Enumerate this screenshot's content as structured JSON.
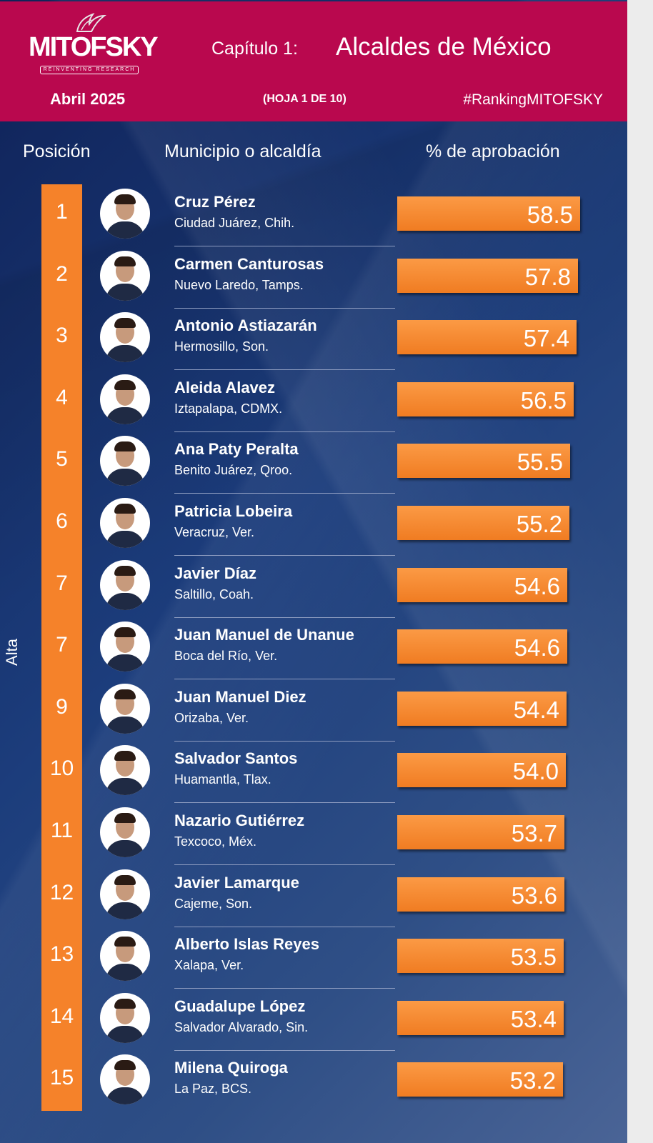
{
  "header": {
    "logo_text": "MITOFSKY",
    "logo_tagline": "REINVENTING RESEARCH",
    "chapter": "Capítulo 1:",
    "title": "Alcaldes de México",
    "date": "Abril 2025",
    "sheet": "(HOJA 1 DE 10)",
    "hashtag": "#RankingMITOFSKY",
    "brand_color": "#b9084e"
  },
  "columns": {
    "position": "Posición",
    "municipality": "Municipio o alcaldía",
    "approval": "% de aprobación"
  },
  "side_label": "Alta",
  "bar_color": "#f5822a",
  "chart_data": {
    "type": "bar",
    "orientation": "horizontal",
    "rows": [
      {
        "pos": "1",
        "name": "Cruz Pérez",
        "city": "Ciudad Juárez, Chih.",
        "value": "58.5"
      },
      {
        "pos": "2",
        "name": "Carmen Canturosas",
        "city": "Nuevo Laredo, Tamps.",
        "value": "57.8"
      },
      {
        "pos": "3",
        "name": "Antonio Astiazarán",
        "city": "Hermosillo, Son.",
        "value": "57.4"
      },
      {
        "pos": "4",
        "name": "Aleida Alavez",
        "city": "Iztapalapa, CDMX.",
        "value": "56.5"
      },
      {
        "pos": "5",
        "name": "Ana Paty Peralta",
        "city": "Benito Juárez, Qroo.",
        "value": "55.5"
      },
      {
        "pos": "6",
        "name": "Patricia Lobeira",
        "city": "Veracruz, Ver.",
        "value": "55.2"
      },
      {
        "pos": "7",
        "name": "Javier Díaz",
        "city": "Saltillo, Coah.",
        "value": "54.6"
      },
      {
        "pos": "7",
        "name": "Juan Manuel de Unanue",
        "city": "Boca del Río, Ver.",
        "value": "54.6"
      },
      {
        "pos": "9",
        "name": "Juan Manuel Diez",
        "city": "Orizaba, Ver.",
        "value": "54.4"
      },
      {
        "pos": "10",
        "name": "Salvador Santos",
        "city": "Huamantla, Tlax.",
        "value": "54.0"
      },
      {
        "pos": "11",
        "name": "Nazario Gutiérrez",
        "city": "Texcoco, Méx.",
        "value": "53.7"
      },
      {
        "pos": "12",
        "name": "Javier Lamarque",
        "city": "Cajeme, Son.",
        "value": "53.6"
      },
      {
        "pos": "13",
        "name": "Alberto Islas Reyes",
        "city": "Xalapa, Ver.",
        "value": "53.5"
      },
      {
        "pos": "14",
        "name": "Guadalupe López",
        "city": "Salvador Alvarado, Sin.",
        "value": "53.4"
      },
      {
        "pos": "15",
        "name": "Milena Quiroga",
        "city": "La Paz, BCS.",
        "value": "53.2"
      }
    ]
  }
}
